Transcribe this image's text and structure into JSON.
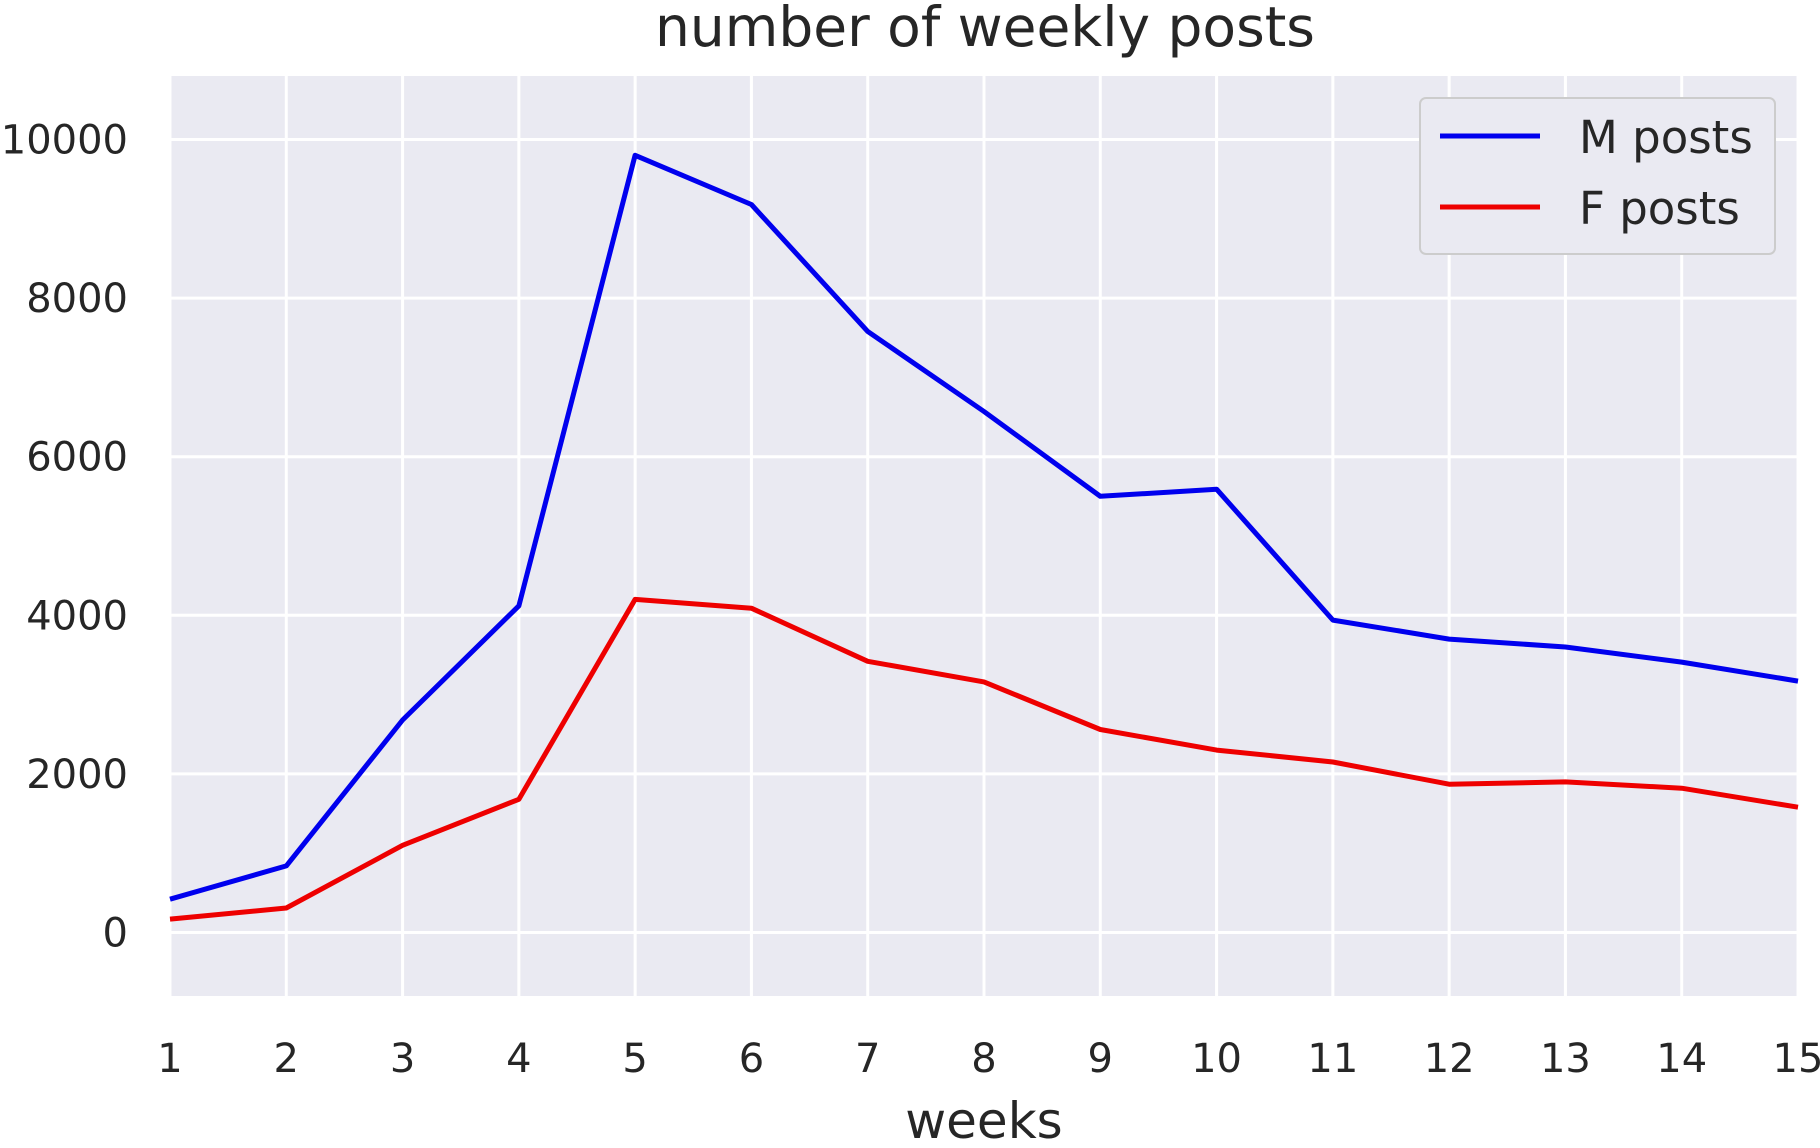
{
  "chart_data": {
    "type": "line",
    "title": "number of weekly posts",
    "xlabel": "weeks",
    "ylabel": "",
    "x": [
      1,
      2,
      3,
      4,
      5,
      6,
      7,
      8,
      9,
      10,
      11,
      12,
      13,
      14,
      15
    ],
    "xticks": [
      1,
      2,
      3,
      4,
      5,
      6,
      7,
      8,
      9,
      10,
      11,
      12,
      13,
      14,
      15
    ],
    "yticks": [
      0,
      2000,
      4000,
      6000,
      8000,
      10000
    ],
    "xlim": [
      1,
      15
    ],
    "ylim": [
      -800,
      10800
    ],
    "grid": true,
    "legend_position": "top-right",
    "series": [
      {
        "name": "M posts",
        "color": "#0000ee",
        "values": [
          420,
          840,
          2680,
          4120,
          9800,
          9180,
          7580,
          6570,
          5500,
          5590,
          3940,
          3700,
          3600,
          3410,
          3170
        ]
      },
      {
        "name": "F posts",
        "color": "#ee0000",
        "values": [
          170,
          310,
          1100,
          1680,
          4200,
          4090,
          3420,
          3160,
          2560,
          2300,
          2150,
          1870,
          1900,
          1820,
          1580
        ]
      }
    ]
  }
}
